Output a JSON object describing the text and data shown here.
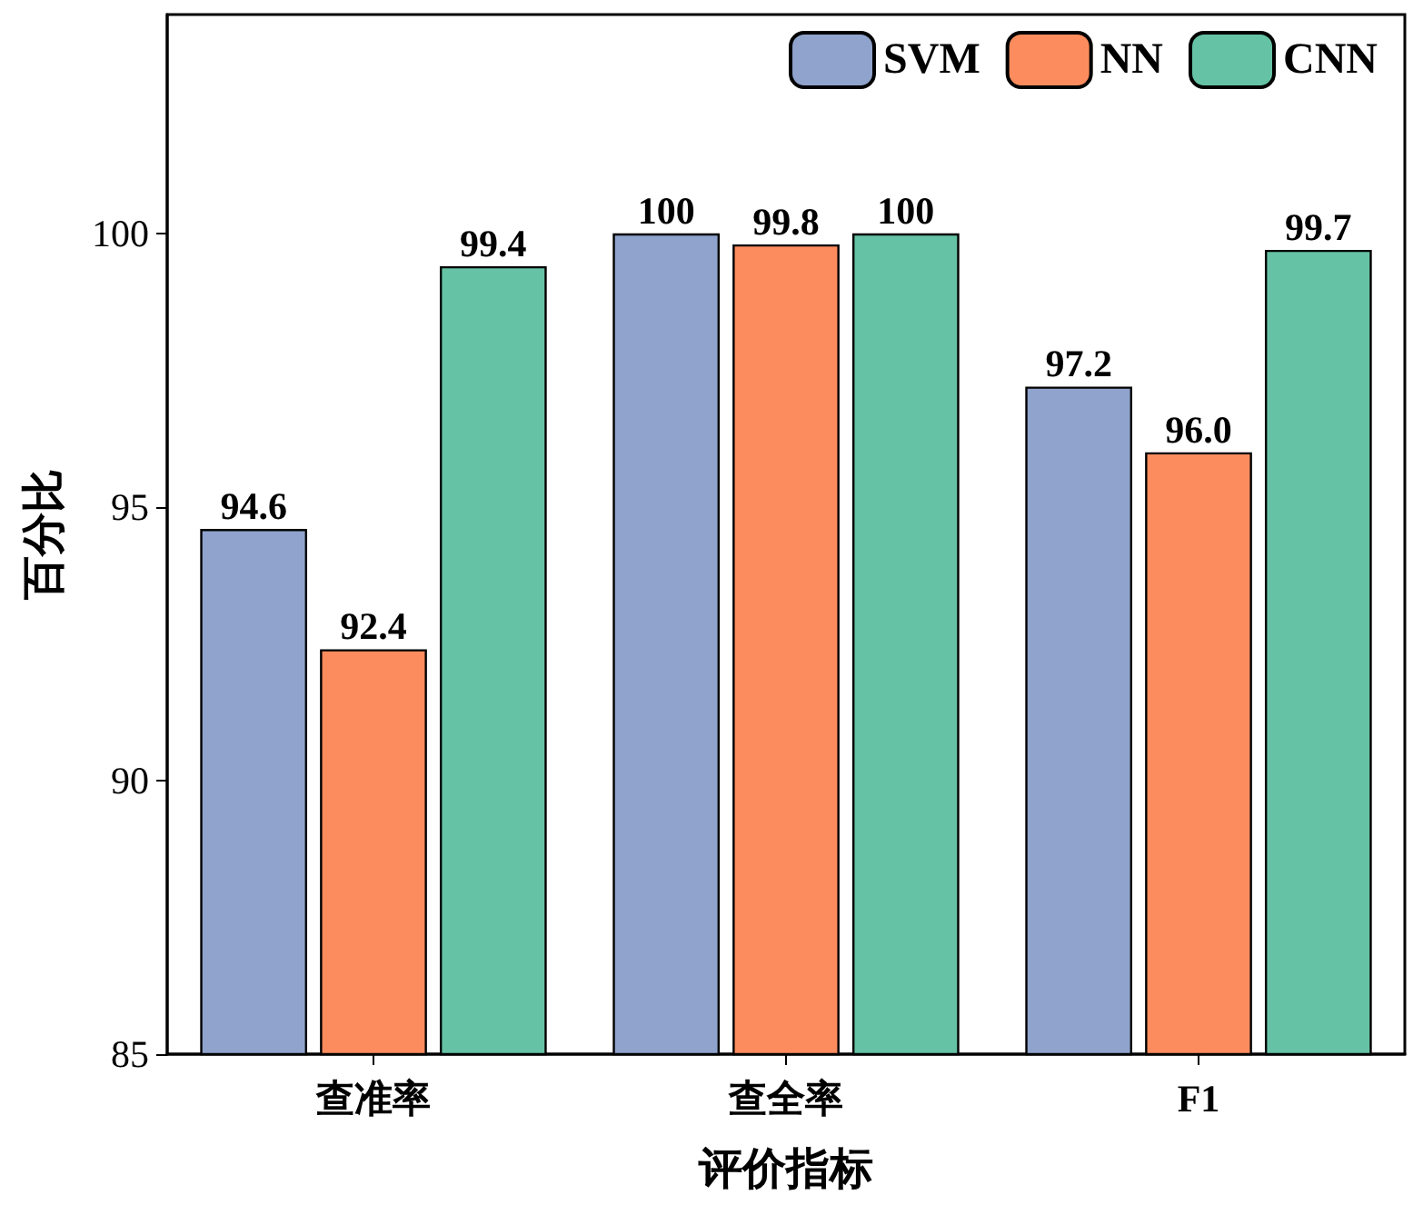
{
  "chart_data": {
    "type": "bar",
    "xlabel": "评价指标",
    "ylabel": "百分比",
    "categories": [
      "查准率",
      "查全率",
      "F1"
    ],
    "series": [
      {
        "name": "SVM",
        "color": "#8fa3cc",
        "values": [
          94.6,
          100,
          97.2
        ],
        "value_labels": [
          "94.6",
          "100",
          "97.2"
        ]
      },
      {
        "name": "NN",
        "color": "#fc8c5e",
        "values": [
          92.4,
          99.8,
          96.0
        ],
        "value_labels": [
          "92.4",
          "99.8",
          "96.0"
        ]
      },
      {
        "name": "CNN",
        "color": "#66c2a5",
        "values": [
          99.4,
          100,
          99.7
        ],
        "value_labels": [
          "99.4",
          "100",
          "99.7"
        ]
      }
    ],
    "ylim": [
      85,
      104
    ],
    "yticks": [
      85,
      90,
      95,
      100
    ],
    "grid": false,
    "legend": "top right"
  }
}
